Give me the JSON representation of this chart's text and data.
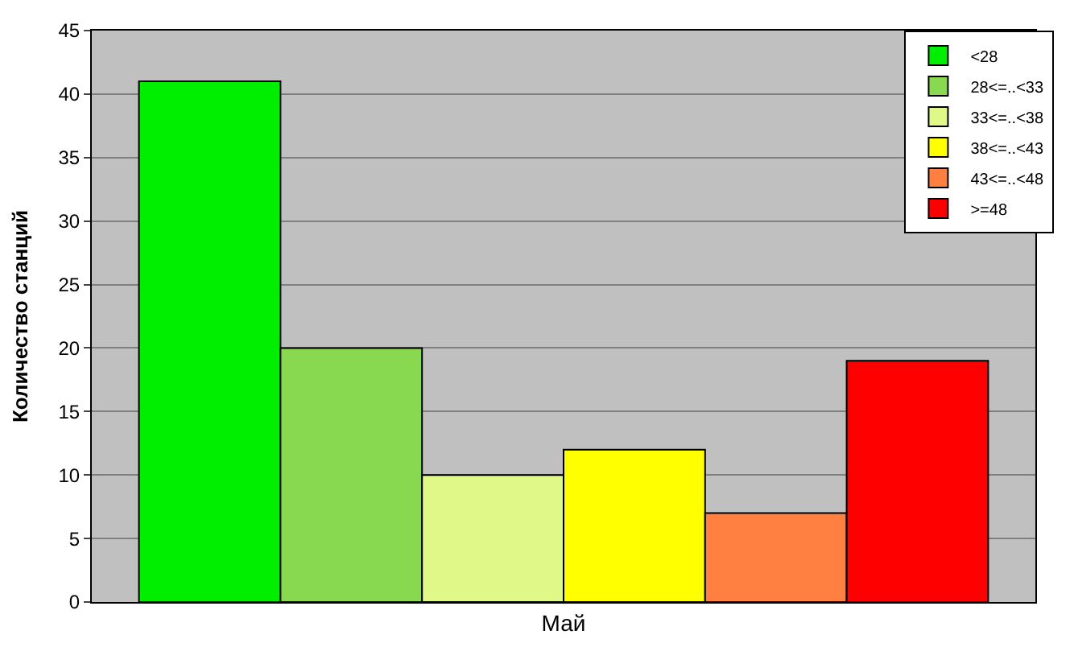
{
  "chart_data": {
    "type": "bar",
    "categories": [
      "Май"
    ],
    "ylabel": "Количество станций",
    "ylim": [
      0,
      45
    ],
    "yticks": [
      0,
      5,
      10,
      15,
      20,
      25,
      30,
      35,
      40,
      45
    ],
    "grid": "y",
    "legend": "top right",
    "series": [
      {
        "name": "<28",
        "color": "#00ee00",
        "values": [
          41
        ]
      },
      {
        "name": "28<=..<33",
        "color": "#88d850",
        "values": [
          20
        ]
      },
      {
        "name": "33<=..<38",
        "color": "#e0f888",
        "values": [
          10
        ]
      },
      {
        "name": "38<=..<43",
        "color": "#ffff00",
        "values": [
          12
        ]
      },
      {
        "name": "43<=..<48",
        "color": "#ff8040",
        "values": [
          7
        ]
      },
      {
        "name": ">=48",
        "color": "#ff0000",
        "values": [
          19
        ]
      }
    ]
  }
}
